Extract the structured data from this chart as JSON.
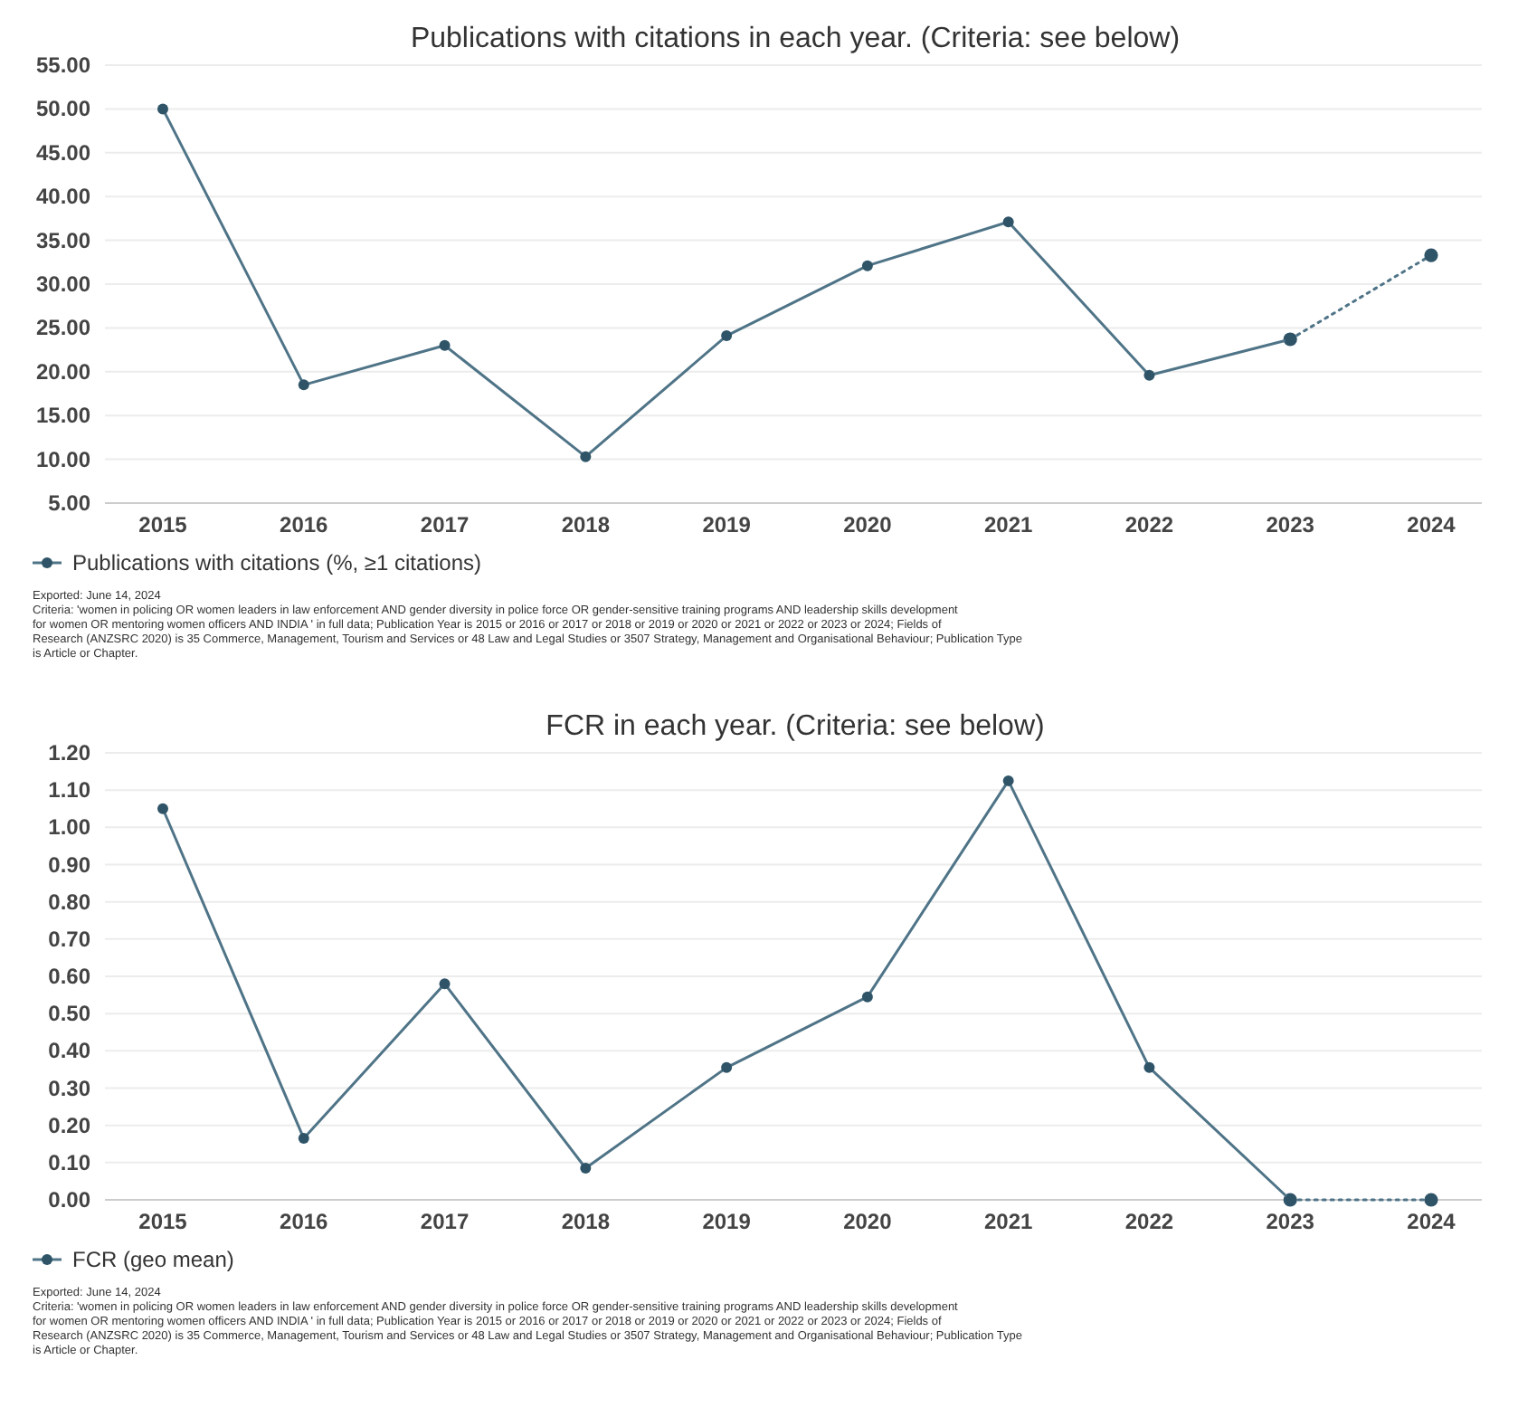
{
  "chart_data": [
    {
      "type": "line",
      "title": "Publications with citations in each year. (Criteria: see below)",
      "categories": [
        "2015",
        "2016",
        "2017",
        "2018",
        "2019",
        "2020",
        "2021",
        "2022",
        "2023",
        "2024"
      ],
      "series": [
        {
          "name": "Publications with citations (%, ≥1 citations)",
          "color": "#4f7487",
          "values": [
            50.0,
            18.5,
            23.0,
            10.3,
            24.1,
            32.1,
            37.1,
            19.6,
            23.7,
            null
          ]
        },
        {
          "color": "#4f7487",
          "line_style": "dotted",
          "values": [
            null,
            null,
            null,
            null,
            null,
            null,
            null,
            null,
            23.7,
            33.3
          ]
        }
      ],
      "ylim": [
        5,
        55
      ],
      "yticks": [
        {
          "value": 5,
          "label": "5.00"
        },
        {
          "value": 10,
          "label": "10.00"
        },
        {
          "value": 15,
          "label": "15.00"
        },
        {
          "value": 20,
          "label": "20.00"
        },
        {
          "value": 25,
          "label": "25.00"
        },
        {
          "value": 30,
          "label": "30.00"
        },
        {
          "value": 35,
          "label": "35.00"
        },
        {
          "value": 40,
          "label": "40.00"
        },
        {
          "value": 45,
          "label": "45.00"
        },
        {
          "value": 50,
          "label": "50.00"
        },
        {
          "value": 55,
          "label": "55.00"
        }
      ],
      "grid": "y",
      "legend": "bottom left",
      "marker": "circle",
      "line_style": "solid",
      "annotations": [
        "Exported: June 14, 2024",
        "Criteria: 'women in policing OR women leaders in law enforcement AND gender diversity in police force OR gender-sensitive training programs AND leadership skills development for women OR mentoring women officers AND INDIA ' in full data; Publication Year is 2015 or 2016 or 2017 or 2018 or 2019 or 2020 or 2021 or 2022 or 2023 or 2024; Fields of Research (ANZSRC 2020) is 35 Commerce, Management, Tourism and Services or 48 Law and Legal Studies or 3507 Strategy, Management and Organisational Behaviour; Publication Type is Article or Chapter."
      ]
    },
    {
      "type": "line",
      "title": "FCR in each year. (Criteria: see below)",
      "categories": [
        "2015",
        "2016",
        "2017",
        "2018",
        "2019",
        "2020",
        "2021",
        "2022",
        "2023",
        "2024"
      ],
      "series": [
        {
          "name": "FCR (geo mean)",
          "color": "#4f7487",
          "values": [
            1.05,
            0.165,
            0.58,
            0.085,
            0.355,
            0.545,
            1.125,
            0.355,
            0.0,
            null
          ]
        },
        {
          "color": "#4f7487",
          "line_style": "dotted",
          "values": [
            null,
            null,
            null,
            null,
            null,
            null,
            null,
            null,
            0.0,
            0.0
          ]
        }
      ],
      "ylim": [
        0,
        1.2
      ],
      "yticks": [
        {
          "value": 0,
          "label": "0.00"
        },
        {
          "value": 0.1,
          "label": "0.10"
        },
        {
          "value": 0.2,
          "label": "0.20"
        },
        {
          "value": 0.3,
          "label": "0.30"
        },
        {
          "value": 0.4,
          "label": "0.40"
        },
        {
          "value": 0.5,
          "label": "0.50"
        },
        {
          "value": 0.6,
          "label": "0.60"
        },
        {
          "value": 0.7,
          "label": "0.70"
        },
        {
          "value": 0.8,
          "label": "0.80"
        },
        {
          "value": 0.9,
          "label": "0.90"
        },
        {
          "value": 1.0,
          "label": "1.00"
        },
        {
          "value": 1.1,
          "label": "1.10"
        },
        {
          "value": 1.2,
          "label": "1.20"
        }
      ],
      "grid": "y",
      "legend": "bottom left",
      "marker": "circle",
      "line_style": "solid",
      "annotations": [
        "Exported: June 14, 2024",
        "Criteria: 'women in policing OR women leaders in law enforcement AND gender diversity in police force OR gender-sensitive training programs AND leadership skills development for women OR mentoring women officers AND INDIA ' in full data; Publication Year is 2015 or 2016 or 2017 or 2018 or 2019 or 2020 or 2021 or 2022 or 2023 or 2024; Fields of Research (ANZSRC 2020) is 35 Commerce, Management, Tourism and Services or 48 Law and Legal Studies or 3507 Strategy, Management and Organisational Behaviour; Publication Type is Article or Chapter."
      ]
    }
  ]
}
